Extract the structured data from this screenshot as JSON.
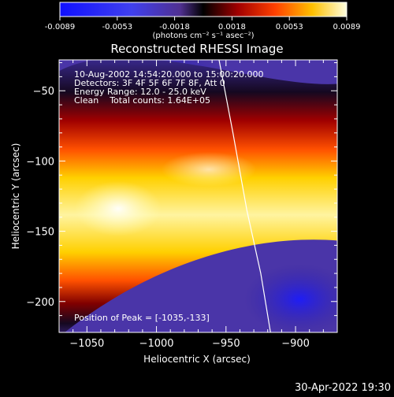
{
  "colorbar": {
    "ticks": [
      "-0.0089",
      "-0.0053",
      "-0.0018",
      "0.0018",
      "0.0053",
      "0.0089"
    ],
    "unit_label": "(photons cm⁻² s⁻¹ asec⁻²)"
  },
  "chart_data": {
    "type": "heatmap",
    "title": "Reconstructed RHESSI Image",
    "xlabel": "Heliocentric X (arcsec)",
    "ylabel": "Heliocentric Y (arcsec)",
    "xlim": [
      -1070,
      -870
    ],
    "ylim": [
      -222,
      -28
    ],
    "x_ticks": [
      -1050,
      -1000,
      -950,
      -900
    ],
    "y_ticks": [
      -50,
      -100,
      -150,
      -200
    ],
    "x_tick_labels": [
      "−1050",
      "−1000",
      "−950",
      "−900"
    ],
    "y_tick_labels": [
      "−50",
      "−100",
      "−150",
      "−200"
    ],
    "colorbar_range": [
      -0.0089,
      0.0089
    ],
    "colormap": "red-temperature",
    "peak_position": [
      -1035,
      -133
    ],
    "limb_curve": [
      [
        -955,
        -28
      ],
      [
        -945,
        -80
      ],
      [
        -935,
        -135
      ],
      [
        -925,
        -180
      ],
      [
        -918,
        -222
      ]
    ]
  },
  "info": {
    "time": "10-Aug-2002 14:54:20.000 to 15:00:20.000",
    "detectors": "Detectors: 3F 4F 5F 6F 7F 8F, Att 0",
    "energy": "Energy Range: 12.0 - 25.0 keV",
    "clean": "Clean    Total counts: 1.64E+05",
    "peak": "Position of Peak = [-1035,-133]"
  },
  "footer": {
    "date": "30-Apr-2022 19:30"
  }
}
